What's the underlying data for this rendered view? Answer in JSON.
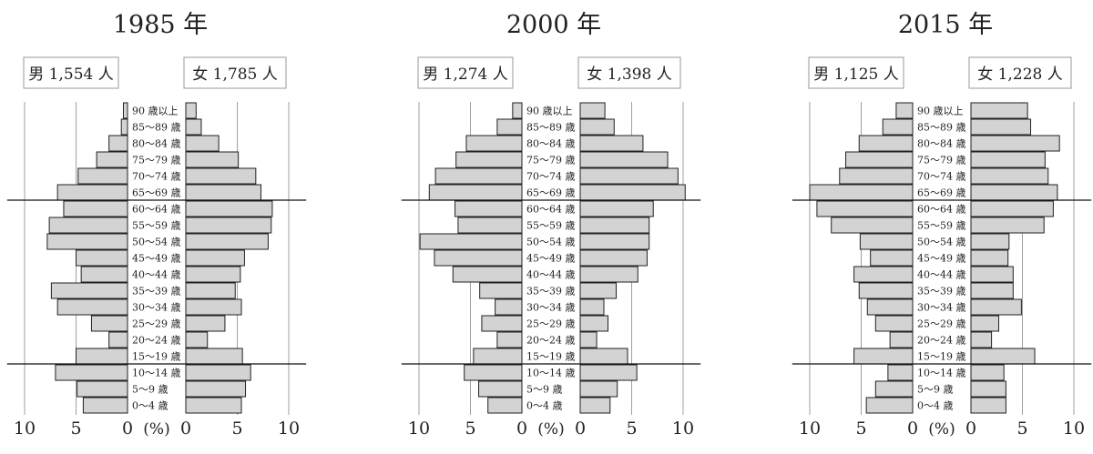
{
  "chart_data": [
    {
      "type": "bar",
      "title": "1985 年",
      "unit_label": "(%)",
      "male_label": "男 1,554 人",
      "female_label": "女 1,785 人",
      "xlim": [
        0,
        10
      ],
      "ticks": [
        10,
        5,
        0
      ],
      "age_groups": [
        "90 歳以上",
        "85～89 歳",
        "80～84 歳",
        "75～79 歳",
        "70～74 歳",
        "65～69 歳",
        "60～64 歳",
        "55～59 歳",
        "50～54 歳",
        "45～49 歳",
        "40～44 歳",
        "35～39 歳",
        "30～34 歳",
        "25～29 歳",
        "20～24 歳",
        "15～19 歳",
        "10～14 歳",
        "5～9 歳",
        "0～4 歳"
      ],
      "series": [
        {
          "name": "男",
          "values": [
            0.4,
            0.6,
            1.8,
            3.0,
            4.8,
            6.8,
            6.2,
            7.6,
            7.8,
            5.0,
            4.5,
            7.4,
            6.8,
            3.5,
            1.8,
            5.0,
            7.0,
            4.9,
            4.3
          ]
        },
        {
          "name": "女",
          "values": [
            1.0,
            1.5,
            3.2,
            5.1,
            6.8,
            7.3,
            8.4,
            8.3,
            8.0,
            5.7,
            5.3,
            4.8,
            5.4,
            3.8,
            2.1,
            5.5,
            6.3,
            5.8,
            5.4
          ]
        }
      ]
    },
    {
      "type": "bar",
      "title": "2000 年",
      "unit_label": "(%)",
      "male_label": "男 1,274 人",
      "female_label": "女 1,398 人",
      "xlim": [
        0,
        10
      ],
      "ticks": [
        10,
        5,
        0
      ],
      "age_groups": [
        "90 歳以上",
        "85～89 歳",
        "80～84 歳",
        "75～79 歳",
        "70～74 歳",
        "65～69 歳",
        "60～64 歳",
        "55～59 歳",
        "50～54 歳",
        "45～49 歳",
        "40～44 歳",
        "35～39 歳",
        "30～34 歳",
        "25～29 歳",
        "20～24 歳",
        "15～19 歳",
        "10～14 歳",
        "5～9 歳",
        "0～4 歳"
      ],
      "series": [
        {
          "name": "男",
          "values": [
            0.9,
            2.4,
            5.4,
            6.4,
            8.4,
            9.0,
            6.5,
            6.2,
            9.9,
            8.5,
            6.7,
            4.1,
            2.6,
            3.9,
            2.4,
            4.7,
            5.6,
            4.2,
            3.3
          ]
        },
        {
          "name": "女",
          "values": [
            2.4,
            3.3,
            6.1,
            8.5,
            9.5,
            10.2,
            7.1,
            6.7,
            6.7,
            6.5,
            5.6,
            3.5,
            2.3,
            2.7,
            1.6,
            4.6,
            5.5,
            3.6,
            2.9
          ]
        }
      ]
    },
    {
      "type": "bar",
      "title": "2015 年",
      "unit_label": "(%)",
      "male_label": "男 1,125 人",
      "female_label": "女 1,228 人",
      "xlim": [
        0,
        10
      ],
      "ticks": [
        10,
        5,
        0
      ],
      "age_groups": [
        "90 歳以上",
        "85～89 歳",
        "80～84 歳",
        "75～79 歳",
        "70～74 歳",
        "65～69 歳",
        "60～64 歳",
        "55～59 歳",
        "50～54 歳",
        "45～49 歳",
        "40～44 歳",
        "35～39 歳",
        "30～34 歳",
        "25～29 歳",
        "20～24 歳",
        "15～19 歳",
        "10～14 歳",
        "5～9 歳",
        "0～4 歳"
      ],
      "series": [
        {
          "name": "男",
          "values": [
            1.6,
            2.9,
            5.2,
            6.5,
            7.1,
            10.0,
            9.3,
            7.9,
            5.1,
            4.1,
            5.7,
            5.2,
            4.4,
            3.6,
            2.2,
            5.7,
            2.4,
            3.6,
            4.5
          ]
        },
        {
          "name": "女",
          "values": [
            5.5,
            5.8,
            8.6,
            7.2,
            7.5,
            8.4,
            8.0,
            7.1,
            3.7,
            3.6,
            4.1,
            4.1,
            4.9,
            2.7,
            2.0,
            6.2,
            3.2,
            3.4,
            3.4
          ]
        }
      ]
    }
  ]
}
